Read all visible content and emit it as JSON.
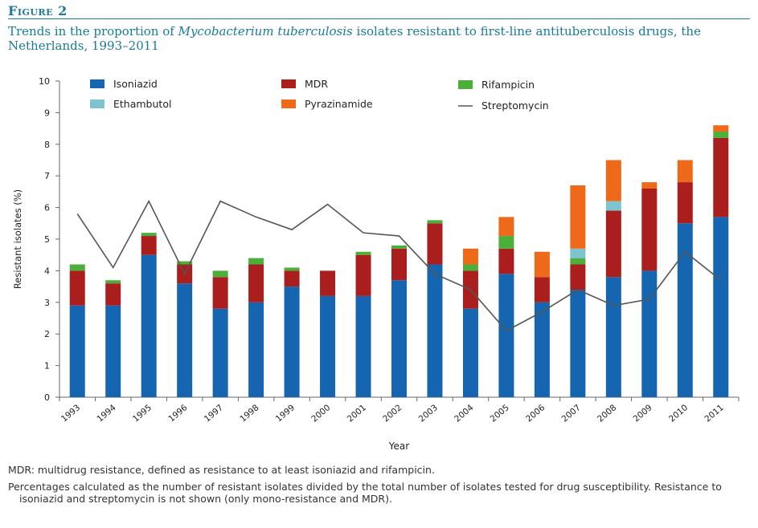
{
  "figure": {
    "label": "Figure 2",
    "title_part1": "Trends in the proportion of ",
    "title_italic": "Mycobacterium tuberculosis",
    "title_part2": " isolates resistant to first-line antituberculosis drugs, the Netherlands, 1993–2011"
  },
  "notes": {
    "note1": "MDR: multidrug resistance, defined as resistance to at least isoniazid and rifampicin.",
    "note2": "Percentages calculated as the number of resistant isolates divided by the total number of isolates tested for drug susceptibility. Resistance to isoniazid and streptomycin is not shown (only mono-resistance and MDR)."
  },
  "colors": {
    "isoniazid": "#1565b0",
    "mdr": "#aa1e1e",
    "rifampicin": "#4caf3a",
    "ethambutol": "#7ec3d0",
    "pyrazinamide": "#ee6a1a",
    "streptomycin": "#555555"
  },
  "chart_data": {
    "type": "bar",
    "stacked": true,
    "xlabel": "Year",
    "ylabel": "Resistant isolates (%)",
    "ylim": [
      0,
      10
    ],
    "yticks": [
      0,
      1,
      2,
      3,
      4,
      5,
      6,
      7,
      8,
      9,
      10
    ],
    "grid": false,
    "legend_position": "top",
    "categories": [
      "1993",
      "1994",
      "1995",
      "1996",
      "1997",
      "1998",
      "1999",
      "2000",
      "2001",
      "2002",
      "2003",
      "2004",
      "2005",
      "2006",
      "2007",
      "2008",
      "2009",
      "2010",
      "2011"
    ],
    "series": [
      {
        "name": "Isoniazid",
        "kind": "bar",
        "color_key": "isoniazid",
        "values": [
          2.9,
          2.9,
          4.5,
          3.6,
          2.8,
          3.0,
          3.5,
          3.2,
          3.2,
          3.7,
          4.2,
          2.8,
          3.9,
          3.0,
          3.4,
          3.8,
          4.0,
          5.5,
          5.7
        ]
      },
      {
        "name": "MDR",
        "kind": "bar",
        "color_key": "mdr",
        "values": [
          1.1,
          0.7,
          0.6,
          0.6,
          1.0,
          1.2,
          0.5,
          0.8,
          1.3,
          1.0,
          1.3,
          1.2,
          0.8,
          0.8,
          0.8,
          2.1,
          2.6,
          1.3,
          2.5
        ]
      },
      {
        "name": "Rifampicin",
        "kind": "bar",
        "color_key": "rifampicin",
        "values": [
          0.2,
          0.1,
          0.1,
          0.1,
          0.2,
          0.2,
          0.1,
          0,
          0.1,
          0.1,
          0.1,
          0.2,
          0.4,
          0,
          0.2,
          0,
          0,
          0,
          0.2
        ]
      },
      {
        "name": "Ethambutol",
        "kind": "bar",
        "color_key": "ethambutol",
        "values": [
          0,
          0,
          0,
          0,
          0,
          0,
          0,
          0,
          0,
          0,
          0,
          0,
          0,
          0,
          0.3,
          0.3,
          0,
          0,
          0
        ]
      },
      {
        "name": "Pyrazinamide",
        "kind": "bar",
        "color_key": "pyrazinamide",
        "values": [
          0,
          0,
          0,
          0,
          0,
          0,
          0,
          0,
          0,
          0,
          0,
          0.5,
          0.6,
          0.8,
          2.0,
          1.3,
          0.2,
          0.7,
          0.2
        ]
      },
      {
        "name": "Streptomycin",
        "kind": "line",
        "color_key": "streptomycin",
        "values": [
          5.8,
          4.1,
          6.2,
          3.9,
          6.2,
          5.7,
          5.3,
          6.1,
          5.2,
          5.1,
          3.9,
          3.4,
          2.1,
          2.7,
          3.4,
          2.9,
          3.1,
          4.6,
          3.7
        ]
      }
    ],
    "legend_order": [
      "Isoniazid",
      "MDR",
      "Rifampicin",
      "Ethambutol",
      "Pyrazinamide",
      "Streptomycin"
    ]
  }
}
